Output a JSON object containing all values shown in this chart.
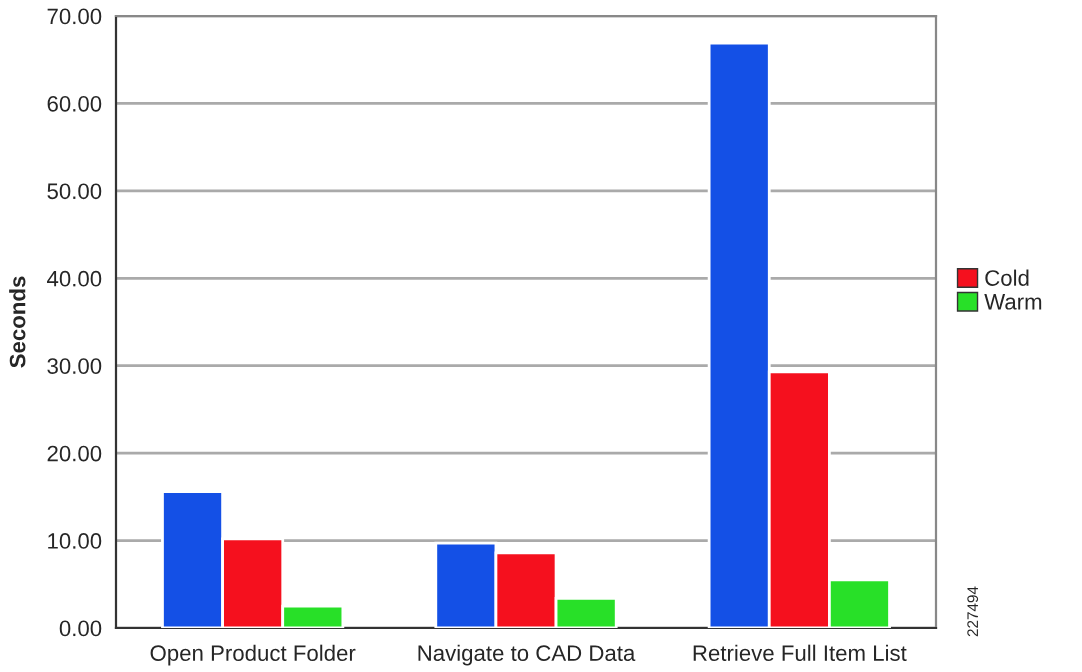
{
  "chart_data": {
    "type": "bar",
    "ylabel": "Seconds",
    "categories": [
      "Open Product Folder",
      "Navigate to CAD Data",
      "Retrieve Full Item List"
    ],
    "series": [
      {
        "color": "#1450e6",
        "values": [
          15.6,
          9.7,
          66.9
        ]
      },
      {
        "name": "Cold",
        "color": "#f5101e",
        "values": [
          10.2,
          8.6,
          29.3
        ]
      },
      {
        "name": "Warm",
        "color": "#28e028",
        "values": [
          2.5,
          3.4,
          5.5
        ]
      }
    ],
    "ylim": [
      0,
      70
    ],
    "yticks": [
      {
        "value": 0,
        "label": "0.00"
      },
      {
        "value": 10,
        "label": "10.00"
      },
      {
        "value": 20,
        "label": "20.00"
      },
      {
        "value": 30,
        "label": "30.00"
      },
      {
        "value": 40,
        "label": "40.00"
      },
      {
        "value": 50,
        "label": "50.00"
      },
      {
        "value": 60,
        "label": "60.00"
      },
      {
        "value": 70,
        "label": "70.00"
      }
    ],
    "grid": "y",
    "legend": "right",
    "annotations": [
      "227494"
    ]
  }
}
